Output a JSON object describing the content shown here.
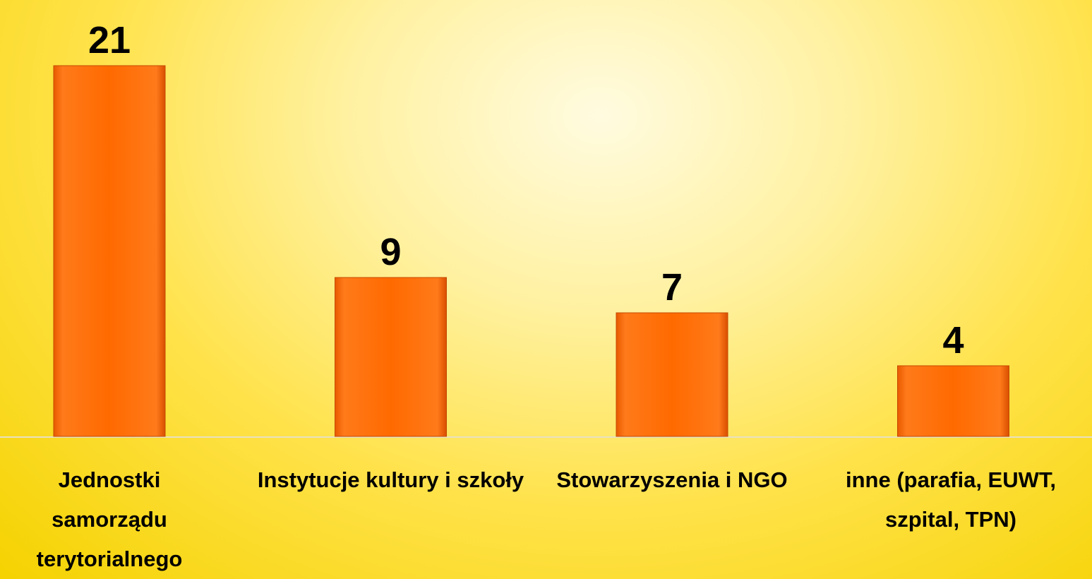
{
  "chart_data": {
    "type": "bar",
    "categories": [
      "Jednostki samorządu terytorialnego",
      "Instytucje kultury i szkoły",
      "Stowarzyszenia i NGO",
      "inne (parafia, EUWT, szpital, TPN)"
    ],
    "values": [
      21,
      9,
      7,
      4
    ],
    "color": "#ff6a00"
  }
}
